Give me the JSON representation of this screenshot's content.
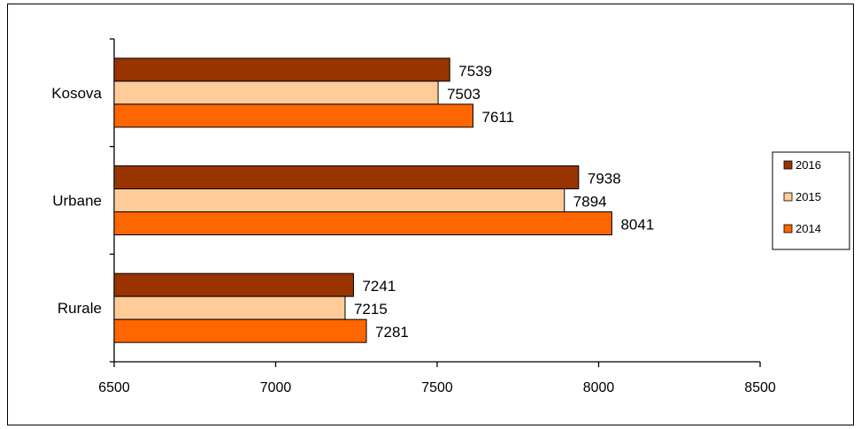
{
  "chart_data": {
    "type": "bar",
    "orientation": "horizontal",
    "categories": [
      "Kosova",
      "Urbane",
      "Rurale"
    ],
    "series": [
      {
        "name": "2016",
        "values": [
          7539,
          7938,
          7241
        ],
        "color": "#993300"
      },
      {
        "name": "2015",
        "values": [
          7503,
          7894,
          7215
        ],
        "color": "#FFCC99"
      },
      {
        "name": "2014",
        "values": [
          7611,
          8041,
          7281
        ],
        "color": "#FF6600"
      }
    ],
    "xlim": [
      6500,
      8500
    ],
    "xticks": [
      "6500",
      "7000",
      "7500",
      "8000",
      "8500"
    ],
    "grid": false,
    "legend_position": "right"
  }
}
